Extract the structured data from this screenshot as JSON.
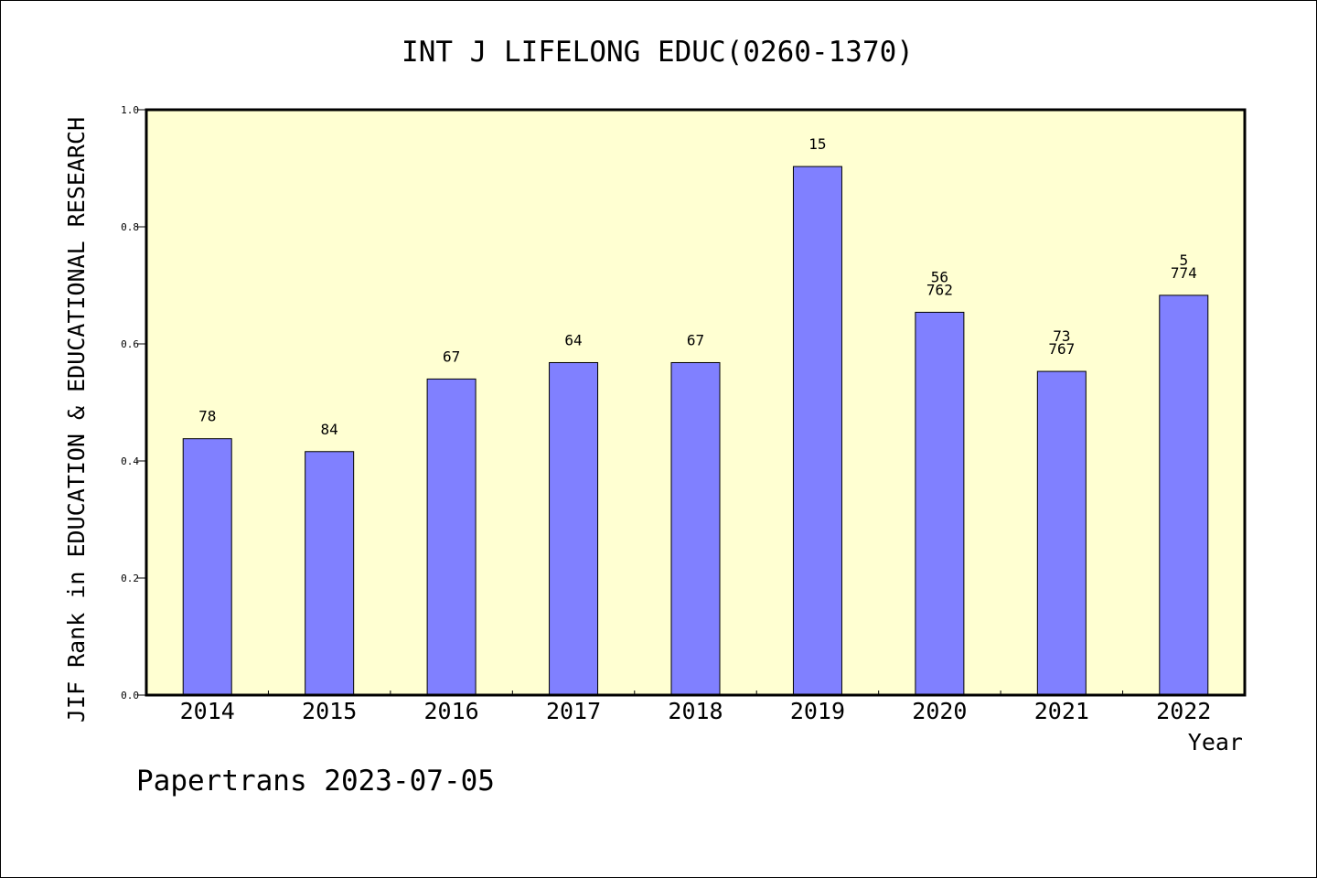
{
  "chart_data": {
    "type": "bar",
    "title": "INT J LIFELONG EDUC(0260-1370)",
    "xlabel": "Year",
    "ylabel": "JIF Rank in EDUCATION & EDUCATIONAL RESEARCH",
    "categories": [
      "2014",
      "2015",
      "2016",
      "2017",
      "2018",
      "2019",
      "2020",
      "2021",
      "2022"
    ],
    "values": [
      0.438,
      0.416,
      0.54,
      0.568,
      0.568,
      0.903,
      0.654,
      0.553,
      0.683
    ],
    "data_labels": [
      "78",
      "84",
      "67",
      "64",
      "67",
      "15",
      "56\n762",
      "73\n767",
      "5\n774"
    ],
    "ylim": [
      0,
      1.0
    ],
    "yticks": [
      "0.0",
      "0.2",
      "0.4",
      "0.6",
      "0.8",
      "1.0"
    ],
    "grid": false,
    "colors": {
      "plot_background": "#ffffd2",
      "bar_fill": "#8080ff",
      "bar_stroke": "#000000"
    }
  },
  "footer": "Papertrans 2023-07-05"
}
